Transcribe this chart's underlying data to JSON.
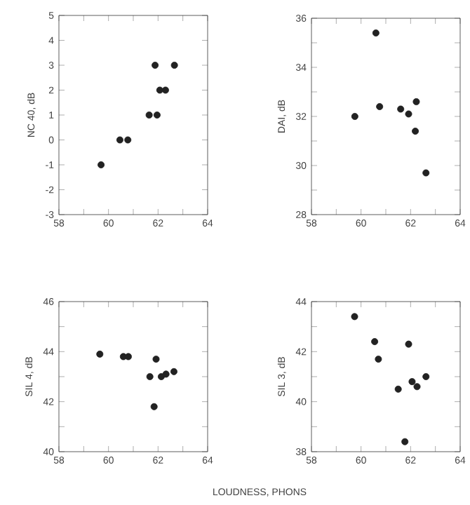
{
  "chart_data": [
    {
      "type": "scatter",
      "ylabel": "NC 40, dB",
      "marker": "circle",
      "color": "#222222",
      "xlim": [
        58,
        64
      ],
      "ylim": [
        -3,
        5
      ],
      "xticks": [
        58,
        60,
        62,
        64
      ],
      "yticks": [
        -3,
        -2,
        -1,
        0,
        1,
        2,
        3,
        4,
        5
      ],
      "x": [
        59.7,
        60.46,
        60.78,
        61.64,
        61.96,
        61.88,
        62.07,
        62.3,
        62.66
      ],
      "values": [
        -1,
        0,
        0,
        1,
        1,
        3,
        2,
        2,
        3
      ]
    },
    {
      "type": "scatter",
      "ylabel": "DAI, dB",
      "marker": "circle",
      "color": "#222222",
      "xlim": [
        58,
        64
      ],
      "ylim": [
        28,
        36
      ],
      "xticks": [
        58,
        60,
        62,
        64
      ],
      "yticks": [
        28,
        30,
        32,
        34,
        36
      ],
      "x": [
        59.75,
        60.6,
        60.75,
        61.6,
        61.92,
        62.23,
        62.19,
        62.62
      ],
      "values": [
        32.0,
        35.4,
        32.4,
        32.3,
        32.1,
        32.6,
        31.4,
        29.7
      ]
    },
    {
      "type": "scatter",
      "ylabel": "SIL 4, dB",
      "xlabel": "LOUDNESS, PHONS",
      "marker": "circle",
      "color": "#222222",
      "xlim": [
        58,
        64
      ],
      "ylim": [
        40,
        46
      ],
      "xticks": [
        58,
        60,
        62,
        64
      ],
      "yticks": [
        40,
        42,
        44,
        46
      ],
      "x": [
        59.65,
        60.6,
        60.8,
        61.67,
        61.92,
        61.84,
        62.13,
        62.32,
        62.64
      ],
      "values": [
        43.9,
        43.8,
        43.8,
        43.0,
        43.7,
        41.8,
        43.0,
        43.1,
        43.2
      ]
    },
    {
      "type": "scatter",
      "ylabel": "SIL 3, dB",
      "marker": "circle",
      "color": "#222222",
      "xlim": [
        58,
        64
      ],
      "ylim": [
        38,
        44
      ],
      "xticks": [
        58,
        60,
        62,
        64
      ],
      "yticks": [
        38,
        40,
        42,
        44
      ],
      "x": [
        59.74,
        60.55,
        60.7,
        61.5,
        61.92,
        61.77,
        62.06,
        62.26,
        62.62
      ],
      "values": [
        43.4,
        42.4,
        41.7,
        40.5,
        42.3,
        38.4,
        40.8,
        40.6,
        41.0
      ]
    }
  ]
}
